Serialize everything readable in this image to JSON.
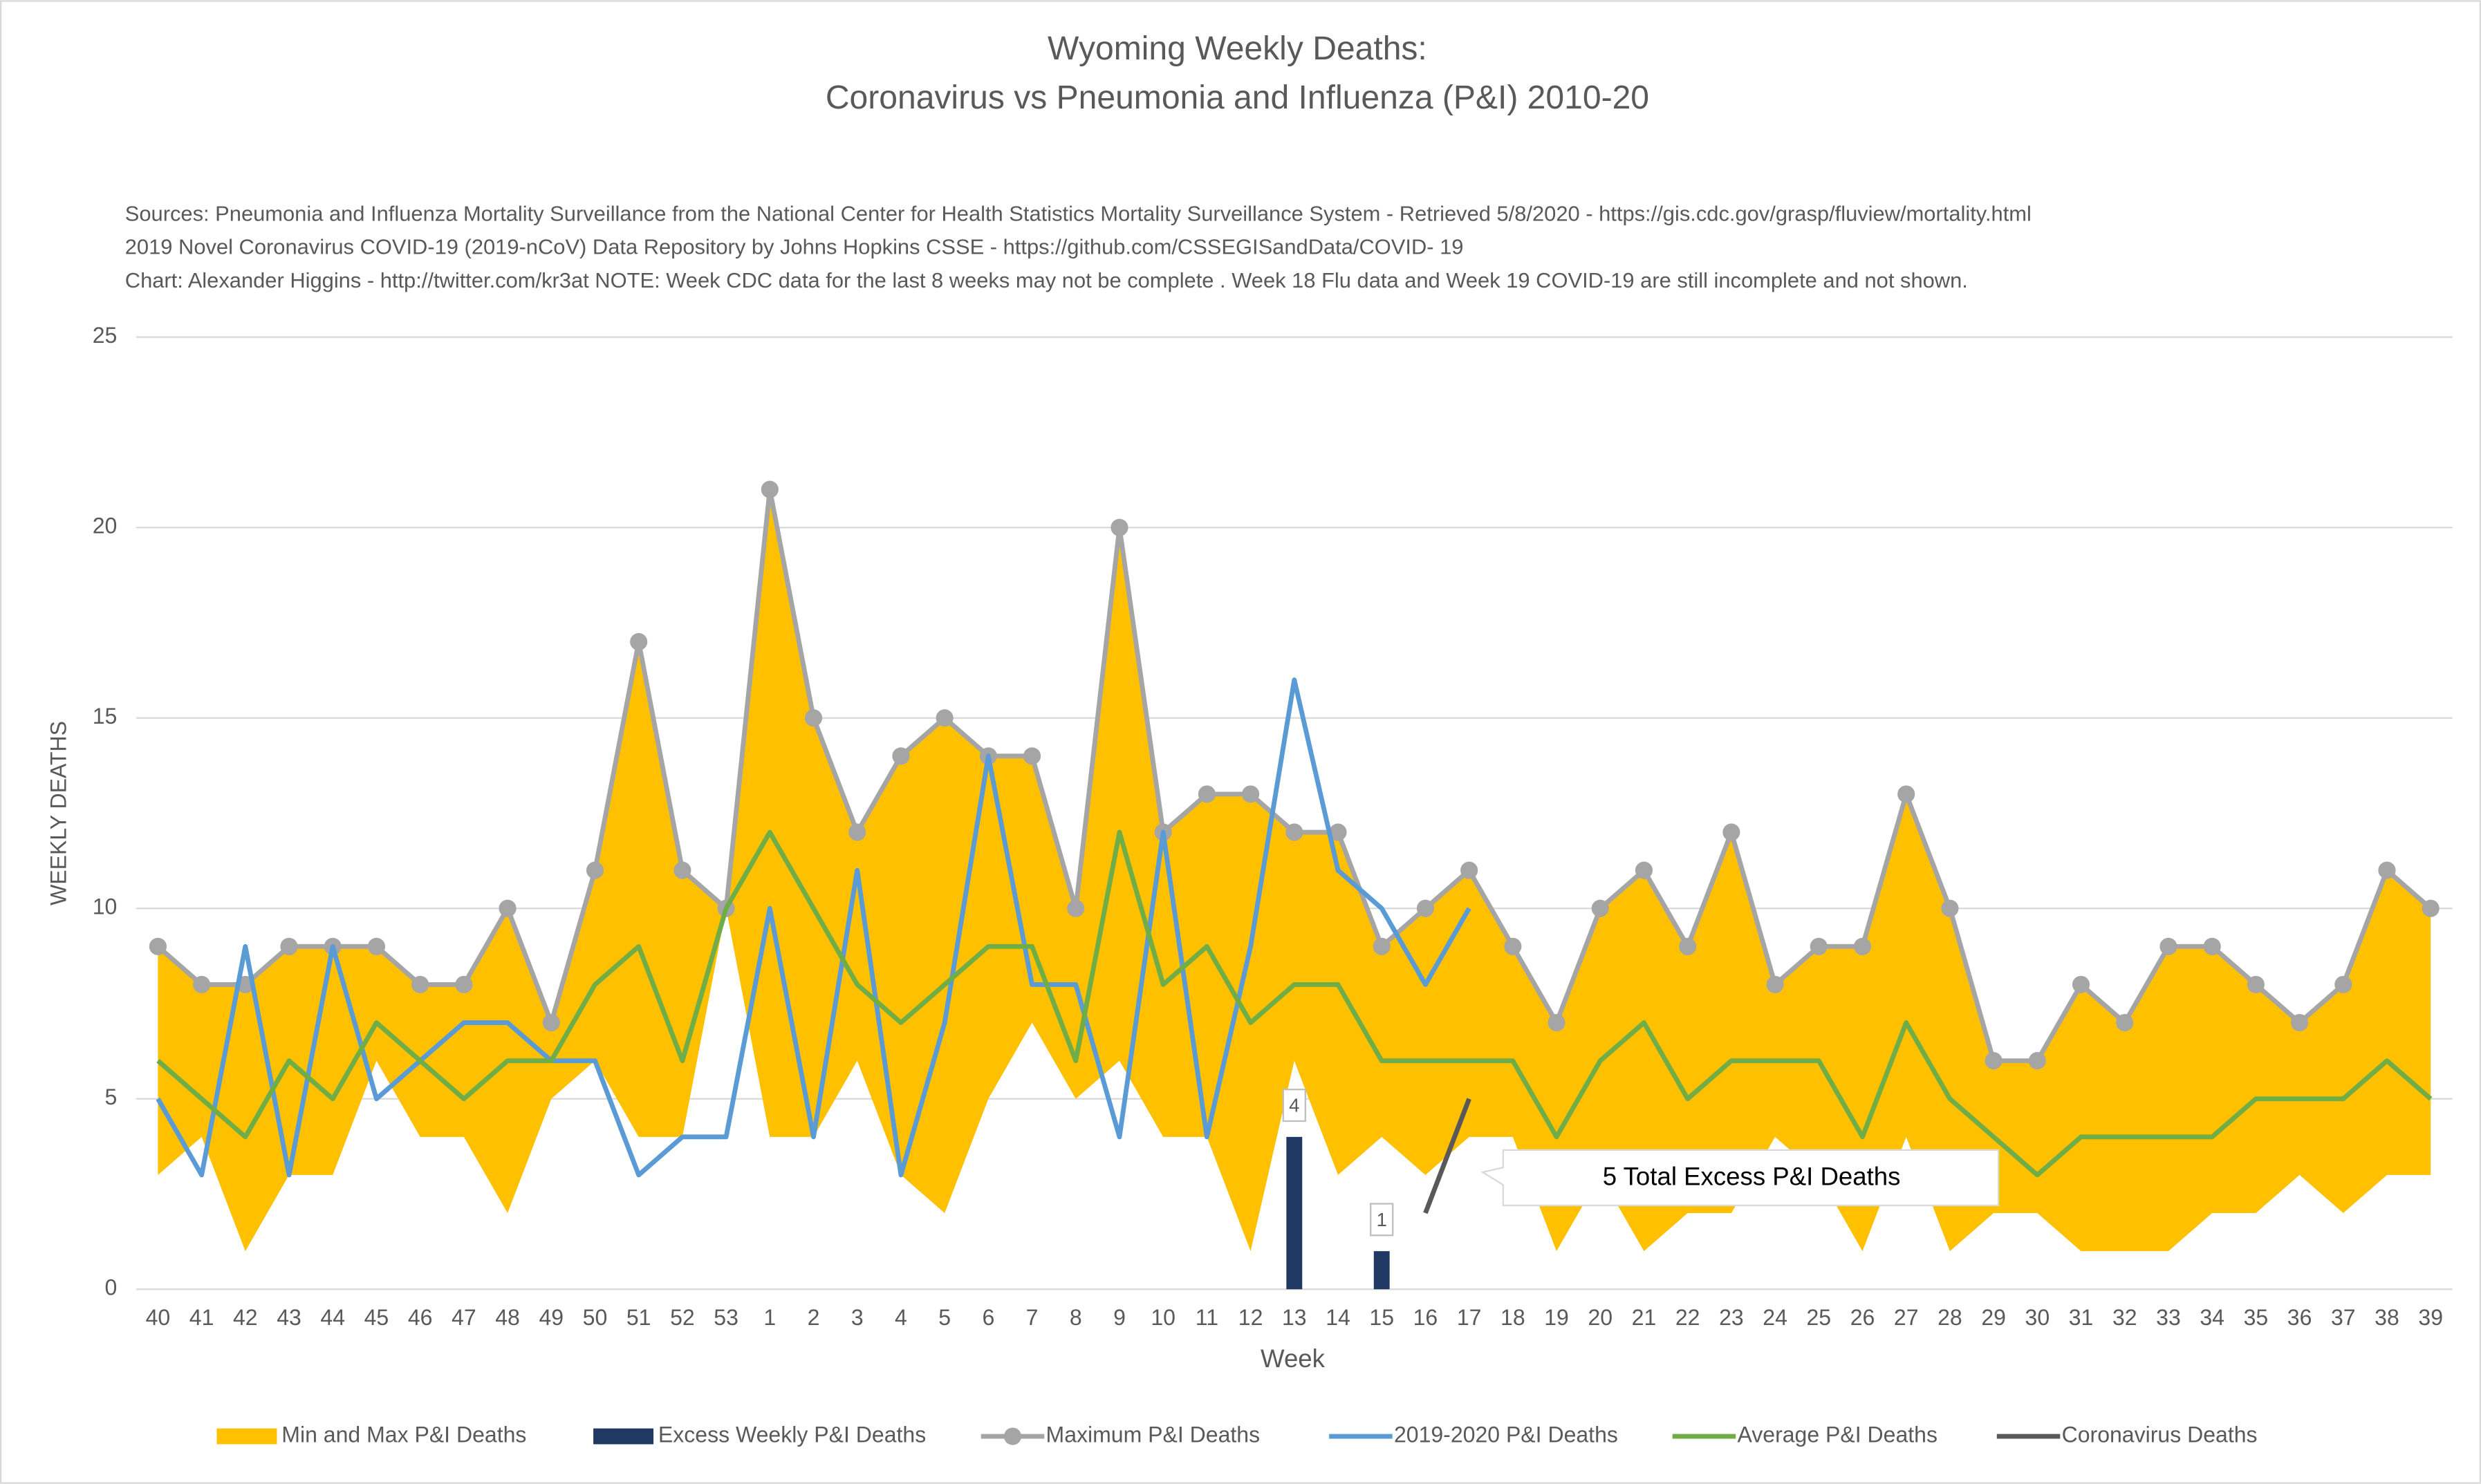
{
  "chart_data": {
    "type": "line",
    "title": [
      "Wyoming Weekly Deaths:",
      "Coronavirus vs Pneumonia and Influenza (P&I) 2010-20"
    ],
    "subtitle": [
      "Sources: Pneumonia and Influenza Mortality Surveillance from the National Center for Health Statistics Mortality Surveillance System - Retrieved 5/8/2020 - https://gis.cdc.gov/grasp/fluview/mortality.html",
      "2019 Novel Coronavirus COVID-19 (2019-nCoV) Data Repository by Johns Hopkins CSSE - https://github.com/CSSEGISandData/COVID- 19",
      "Chart: Alexander Higgins - http://twitter.com/kr3at   NOTE: Week CDC data for the last 8 weeks may not be complete . Week 18 Flu data and Week 19 COVID-19 are still incomplete and not shown."
    ],
    "x_label": "Week",
    "y_label": "WEEKLY DEATHS",
    "annotation": "5 Total Excess P&I Deaths",
    "categories": [
      "40",
      "41",
      "42",
      "43",
      "44",
      "45",
      "46",
      "47",
      "48",
      "49",
      "50",
      "51",
      "52",
      "53",
      "1",
      "2",
      "3",
      "4",
      "5",
      "6",
      "7",
      "8",
      "9",
      "10",
      "11",
      "12",
      "13",
      "14",
      "15",
      "16",
      "17",
      "18",
      "19",
      "20",
      "21",
      "22",
      "23",
      "24",
      "25",
      "26",
      "27",
      "28",
      "29",
      "30",
      "31",
      "32",
      "33",
      "34",
      "35",
      "36",
      "37",
      "38",
      "39"
    ],
    "ylim": [
      0,
      25
    ],
    "yticks": [
      0,
      5,
      10,
      15,
      20,
      25
    ],
    "grid": true,
    "legend": "bottom",
    "series": [
      {
        "name": "Min and Max P&I Deaths",
        "type": "area",
        "color": "#FFC000",
        "values": [
          3,
          4,
          1,
          3,
          3,
          6,
          4,
          4,
          2,
          5,
          6,
          4,
          4,
          10,
          4,
          4,
          6,
          3,
          2,
          5,
          7,
          5,
          6,
          4,
          4,
          1,
          6,
          3,
          4,
          3,
          4,
          4,
          1,
          3,
          1,
          2,
          2,
          4,
          3,
          1,
          4,
          1,
          2,
          2,
          1,
          1,
          1,
          2,
          2,
          3,
          2,
          3,
          3
        ]
      },
      {
        "name": "Excess Weekly P&I Deaths",
        "type": "bar",
        "color": "#203864",
        "values": [
          null,
          null,
          null,
          null,
          null,
          null,
          null,
          null,
          null,
          null,
          null,
          null,
          null,
          null,
          null,
          null,
          null,
          null,
          null,
          null,
          null,
          null,
          null,
          null,
          null,
          null,
          4,
          null,
          1,
          null,
          null,
          null,
          null,
          null,
          null,
          null,
          null,
          null,
          null,
          null,
          null,
          null,
          null,
          null,
          null,
          null,
          null,
          null,
          null,
          null,
          null,
          null,
          null
        ]
      },
      {
        "name": "Maximum P&I Deaths",
        "type": "line",
        "color": "#A5A5A5",
        "marker": true,
        "values": [
          9,
          8,
          8,
          9,
          9,
          9,
          8,
          8,
          10,
          7,
          11,
          17,
          11,
          10,
          21,
          15,
          12,
          14,
          15,
          14,
          14,
          10,
          20,
          12,
          13,
          13,
          12,
          12,
          9,
          10,
          11,
          9,
          7,
          10,
          11,
          9,
          12,
          8,
          9,
          9,
          13,
          10,
          6,
          6,
          8,
          7,
          9,
          9,
          8,
          7,
          8,
          11,
          10
        ]
      },
      {
        "name": "2019-2020 P&I Deaths",
        "type": "line",
        "color": "#5B9BD5",
        "values": [
          5,
          3,
          9,
          3,
          9,
          5,
          6,
          7,
          7,
          6,
          6,
          3,
          4,
          4,
          10,
          4,
          11,
          3,
          7,
          14,
          8,
          8,
          4,
          12,
          4,
          9,
          16,
          11,
          10,
          8,
          10,
          null,
          null,
          null,
          null,
          null,
          null,
          null,
          null,
          null,
          null,
          null,
          null,
          null,
          null,
          null,
          null,
          null,
          null,
          null,
          null,
          null,
          null
        ]
      },
      {
        "name": "Average P&I Deaths",
        "type": "line",
        "color": "#70AD47",
        "values": [
          6,
          5,
          4,
          6,
          5,
          7,
          6,
          5,
          6,
          6,
          8,
          9,
          6,
          10,
          12,
          10,
          8,
          7,
          8,
          9,
          9,
          6,
          12,
          8,
          9,
          7,
          8,
          8,
          6,
          6,
          6,
          6,
          4,
          6,
          7,
          5,
          6,
          6,
          6,
          4,
          7,
          5,
          4,
          3,
          4,
          4,
          4,
          4,
          5,
          5,
          5,
          6,
          5
        ]
      },
      {
        "name": "Coronavirus Deaths",
        "type": "line",
        "color": "#595959",
        "values": [
          null,
          null,
          null,
          null,
          null,
          null,
          null,
          null,
          null,
          null,
          null,
          null,
          null,
          null,
          null,
          null,
          null,
          null,
          null,
          null,
          null,
          null,
          null,
          null,
          null,
          null,
          null,
          null,
          null,
          2,
          5,
          null,
          null,
          null,
          null,
          null,
          null,
          null,
          null,
          null,
          null,
          null,
          null,
          null,
          null,
          null,
          null,
          null,
          null,
          null,
          null,
          null,
          null
        ]
      }
    ]
  }
}
